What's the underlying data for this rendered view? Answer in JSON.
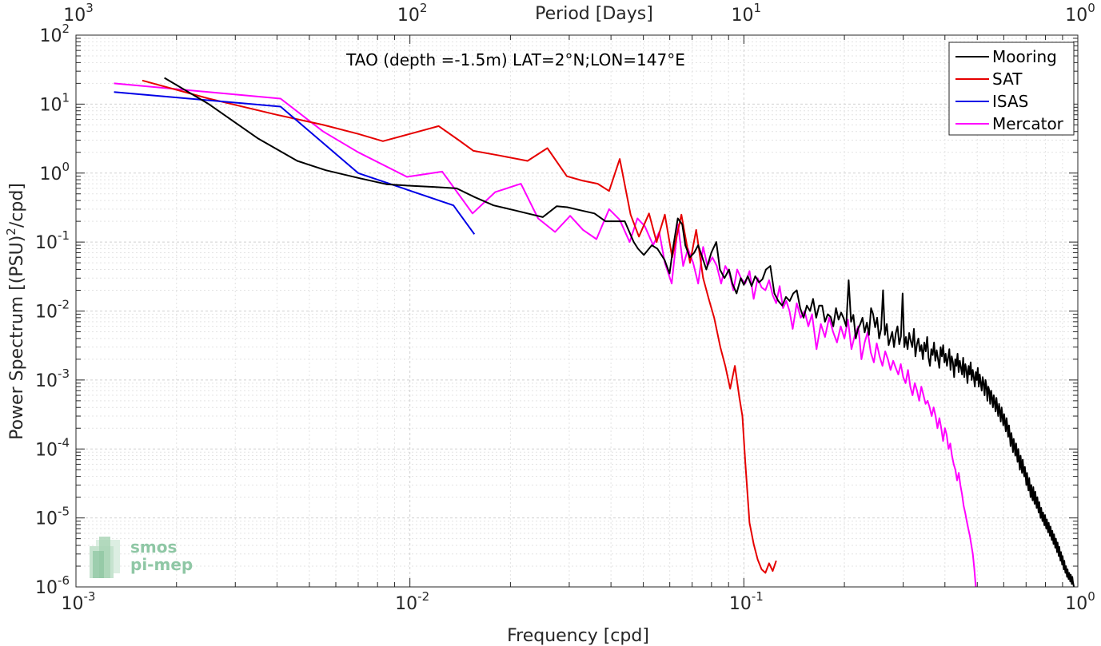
{
  "chart_data": {
    "type": "line",
    "title": "TAO (depth =-1.5m) LAT=2°N;LON=147°E",
    "xlabel": "Frequency [cpd]",
    "ylabel": "Power Spectrum [(PSU)",
    "ylabel_sup": "2",
    "ylabel_tail": "/cpd]",
    "x2label": "Period [Days]",
    "x_scale": "log",
    "y_scale": "log",
    "xlim": [
      0.001,
      1
    ],
    "ylim": [
      1e-06,
      100
    ],
    "grid": true,
    "legend_position": "top-right",
    "x_ticks": [
      {
        "value": 0.001,
        "base": "10",
        "exp": "-3"
      },
      {
        "value": 0.01,
        "base": "10",
        "exp": "-2"
      },
      {
        "value": 0.1,
        "base": "10",
        "exp": "-1"
      },
      {
        "value": 1,
        "base": "10",
        "exp": "0"
      }
    ],
    "x2_ticks": [
      {
        "value": 0.001,
        "base": "10",
        "exp": "3"
      },
      {
        "value": 0.01,
        "base": "10",
        "exp": "2"
      },
      {
        "value": 0.1,
        "base": "10",
        "exp": "1"
      },
      {
        "value": 1,
        "base": "10",
        "exp": "0"
      }
    ],
    "y_ticks": [
      {
        "value": 100,
        "base": "10",
        "exp": "2"
      },
      {
        "value": 10,
        "base": "10",
        "exp": "1"
      },
      {
        "value": 1,
        "base": "10",
        "exp": "0"
      },
      {
        "value": 0.1,
        "base": "10",
        "exp": "-1"
      },
      {
        "value": 0.01,
        "base": "10",
        "exp": "-2"
      },
      {
        "value": 0.001,
        "base": "10",
        "exp": "-3"
      },
      {
        "value": 0.0001,
        "base": "10",
        "exp": "-4"
      },
      {
        "value": 1e-05,
        "base": "10",
        "exp": "-5"
      },
      {
        "value": 1e-06,
        "base": "10",
        "exp": "-6"
      }
    ],
    "series": [
      {
        "name": "Mooring",
        "color": "#000000",
        "x": [
          0.00184,
          0.0025,
          0.0035,
          0.0046,
          0.0056,
          0.007,
          0.0085,
          0.0097,
          0.0118,
          0.0138,
          0.0156,
          0.0178,
          0.0205,
          0.0225,
          0.025,
          0.0275,
          0.0296,
          0.0323,
          0.0357,
          0.0385,
          0.0413,
          0.044,
          0.0468,
          0.0482,
          0.0502,
          0.053,
          0.0551,
          0.0579,
          0.0599,
          0.0613,
          0.0634,
          0.0654,
          0.0668,
          0.0689,
          0.071,
          0.073,
          0.0751,
          0.0772,
          0.0799,
          0.0827,
          0.0848,
          0.0875,
          0.0903,
          0.0924,
          0.0951,
          0.0979,
          0.1,
          0.1027,
          0.1055,
          0.1082,
          0.111,
          0.1137,
          0.1165,
          0.12,
          0.1234,
          0.1268,
          0.1303,
          0.1337,
          0.1372,
          0.1406,
          0.144,
          0.1475,
          0.1509,
          0.1544,
          0.1578,
          0.1612,
          0.1647,
          0.1681,
          0.1716,
          0.175,
          0.1784,
          0.1819,
          0.1853,
          0.1888,
          0.1922,
          0.1956,
          0.1991,
          0.2025,
          0.206,
          0.2094,
          0.2128,
          0.2163,
          0.2197,
          0.2232,
          0.2266,
          0.23,
          0.2335,
          0.2369,
          0.2404,
          0.2438,
          0.2472,
          0.2507,
          0.2541,
          0.2576,
          0.261,
          0.2644,
          0.2679,
          0.2713,
          0.2748,
          0.2782,
          0.2816,
          0.2851,
          0.2885,
          0.292,
          0.2954,
          0.2988,
          0.3023,
          0.3057,
          0.3092,
          0.3126,
          0.316,
          0.3195,
          0.3229,
          0.3264,
          0.3298,
          0.3332,
          0.3367,
          0.3401,
          0.3436,
          0.347,
          0.3504,
          0.3539,
          0.3573,
          0.3608,
          0.3642,
          0.3676,
          0.3711,
          0.3745,
          0.378,
          0.3814,
          0.3848,
          0.3883,
          0.3917,
          0.3952,
          0.3986,
          0.402,
          0.4055,
          0.4089,
          0.4124,
          0.4158,
          0.4192,
          0.4227,
          0.4261,
          0.4296,
          0.433,
          0.4364,
          0.4399,
          0.4433,
          0.4468,
          0.4502,
          0.4536,
          0.4571,
          0.4605,
          0.464,
          0.4674,
          0.4708,
          0.4743,
          0.4777,
          0.4812,
          0.4846,
          0.488,
          0.4915,
          0.4949,
          0.4984,
          0.5018,
          0.5052,
          0.5087,
          0.5121,
          0.5156,
          0.519,
          0.5224,
          0.5259,
          0.5293,
          0.5328,
          0.5362,
          0.5396,
          0.5431,
          0.5465,
          0.55,
          0.5534,
          0.5568,
          0.5603,
          0.5637,
          0.5672,
          0.5706,
          0.574,
          0.5775,
          0.5809,
          0.5844,
          0.5878,
          0.5912,
          0.5947,
          0.5981,
          0.6016,
          0.605,
          0.6084,
          0.6119,
          0.6153,
          0.6188,
          0.6222,
          0.6256,
          0.6291,
          0.6325,
          0.636,
          0.6394,
          0.6428,
          0.6463,
          0.6497,
          0.6532,
          0.6566,
          0.66,
          0.6635,
          0.6669,
          0.6704,
          0.6738,
          0.6772,
          0.6807,
          0.6841,
          0.6876,
          0.691,
          0.6944,
          0.6979,
          0.7013,
          0.7048,
          0.7082,
          0.7116,
          0.7151,
          0.7185,
          0.722,
          0.7254,
          0.7288,
          0.7323,
          0.7357,
          0.7392,
          0.7426,
          0.746,
          0.7495,
          0.7529,
          0.7564,
          0.7598,
          0.7632,
          0.7667,
          0.7701,
          0.7736,
          0.777,
          0.7804,
          0.7839,
          0.7873,
          0.7908,
          0.7942,
          0.7976,
          0.8011,
          0.8045,
          0.808,
          0.8114,
          0.8148,
          0.8183,
          0.8217,
          0.8252,
          0.8286,
          0.832,
          0.8355,
          0.8389,
          0.8424,
          0.8458,
          0.8492,
          0.8527,
          0.8561,
          0.8596,
          0.863,
          0.8664,
          0.8699,
          0.8733,
          0.8768,
          0.8802,
          0.8836,
          0.8871,
          0.8905,
          0.894,
          0.8974,
          0.9008,
          0.9043,
          0.9077,
          0.9112,
          0.9146,
          0.918,
          0.9215,
          0.9249,
          0.9284,
          0.9318,
          0.9352,
          0.9387,
          0.9421,
          0.9456,
          0.949,
          0.9524,
          0.9559,
          0.9593,
          0.9628,
          0.9662,
          0.9696,
          0.9731
        ],
        "y": [
          24,
          10,
          3.2,
          1.5,
          1.1,
          0.85,
          0.69,
          0.66,
          0.63,
          0.6,
          0.45,
          0.34,
          0.29,
          0.26,
          0.23,
          0.33,
          0.32,
          0.29,
          0.26,
          0.2,
          0.2,
          0.2,
          0.1,
          0.08,
          0.065,
          0.09,
          0.08,
          0.055,
          0.035,
          0.08,
          0.22,
          0.18,
          0.09,
          0.06,
          0.07,
          0.09,
          0.06,
          0.04,
          0.07,
          0.1,
          0.04,
          0.03,
          0.04,
          0.025,
          0.018,
          0.03,
          0.024,
          0.032,
          0.023,
          0.032,
          0.026,
          0.029,
          0.04,
          0.045,
          0.018,
          0.014,
          0.012,
          0.016,
          0.014,
          0.018,
          0.02,
          0.011,
          0.008,
          0.012,
          0.01,
          0.015,
          0.008,
          0.012,
          0.012,
          0.007,
          0.009,
          0.0082,
          0.006,
          0.011,
          0.0075,
          0.0095,
          0.0078,
          0.006,
          0.028,
          0.007,
          0.0088,
          0.004,
          0.0055,
          0.0065,
          0.008,
          0.0049,
          0.0068,
          0.0045,
          0.011,
          0.009,
          0.0058,
          0.008,
          0.004,
          0.0055,
          0.02,
          0.0045,
          0.0065,
          0.0032,
          0.004,
          0.005,
          0.003,
          0.0048,
          0.006,
          0.0033,
          0.0043,
          0.018,
          0.003,
          0.0042,
          0.0028,
          0.0048,
          0.0037,
          0.003,
          0.0055,
          0.0022,
          0.0033,
          0.004,
          0.0026,
          0.0032,
          0.002,
          0.0035,
          0.0026,
          0.0042,
          0.0021,
          0.0016,
          0.0028,
          0.0023,
          0.0035,
          0.0019,
          0.0027,
          0.002,
          0.0015,
          0.003,
          0.0022,
          0.0032,
          0.0018,
          0.0024,
          0.0016,
          0.0021,
          0.0028,
          0.0014,
          0.0022,
          0.0018,
          0.0011,
          0.002,
          0.0016,
          0.0024,
          0.0013,
          0.0019,
          0.0015,
          0.0012,
          0.0021,
          0.0011,
          0.0017,
          0.0014,
          0.0009,
          0.0016,
          0.0012,
          0.0018,
          0.001,
          0.0014,
          0.0011,
          0.0008,
          0.0013,
          0.001,
          0.0015,
          0.0008,
          0.0012,
          0.0009,
          0.0007,
          0.0011,
          0.0009,
          0.0006,
          0.001,
          0.0008,
          0.0005,
          0.0008,
          0.0007,
          0.00045,
          0.0007,
          0.00055,
          0.0004,
          0.0006,
          0.00048,
          0.00035,
          0.00055,
          0.0004,
          0.0003,
          0.00045,
          0.00035,
          0.00025,
          0.0004,
          0.0003,
          0.00022,
          0.00032,
          0.00025,
          0.00018,
          0.00028,
          0.00021,
          0.00015,
          0.00022,
          0.00016,
          0.00011,
          0.00017,
          0.00013,
          9e-05,
          0.00014,
          0.00011,
          8e-05,
          0.00012,
          9e-05,
          6.5e-05,
          0.0001,
          7e-05,
          5e-05,
          8e-05,
          6e-05,
          4.5e-05,
          7e-05,
          5e-05,
          4e-05,
          5.5e-05,
          4e-05,
          3e-05,
          4.5e-05,
          3.2e-05,
          2.5e-05,
          3.8e-05,
          2.8e-05,
          2e-05,
          3e-05,
          2.2e-05,
          1.8e-05,
          2.8e-05,
          2e-05,
          1.6e-05,
          2.4e-05,
          1.8e-05,
          1.4e-05,
          2e-05,
          1.5e-05,
          1.2e-05,
          1.7e-05,
          1.3e-05,
          1e-05,
          1.4e-05,
          1.1e-05,
          9e-06,
          1.2e-05,
          9.5e-06,
          7.8e-06,
          1.1e-05,
          8.5e-06,
          7e-06,
          9.5e-06,
          7.5e-06,
          6.2e-06,
          8.5e-06,
          6.8e-06,
          5.5e-06,
          7.5e-06,
          6e-06,
          4.8e-06,
          6.5e-06,
          5.2e-06,
          4.2e-06,
          5.8e-06,
          4.6e-06,
          3.7e-06,
          5e-06,
          4e-06,
          3.2e-06,
          4.4e-06,
          3.5e-06,
          2.8e-06,
          3.8e-06,
          3e-06,
          2.4e-06,
          3.2e-06,
          2.6e-06,
          2.1e-06,
          2.8e-06,
          2.2e-06,
          1.8e-06,
          2.4e-06,
          1.9e-06,
          1.6e-06,
          2e-06,
          1.7e-06,
          1.4e-06,
          1.8e-06,
          1.5e-06,
          1.3e-06,
          1.6e-06,
          1.4e-06,
          1.2e-06,
          1.5e-06,
          1.3e-06,
          1.1e-06,
          1.4e-06,
          1.2e-06,
          1.1e-06,
          1e-06
        ]
      },
      {
        "name": "SAT",
        "color": "#e60000",
        "x": [
          0.00158,
          0.0025,
          0.004,
          0.0055,
          0.007,
          0.0083,
          0.01,
          0.0122,
          0.014,
          0.0155,
          0.0185,
          0.0225,
          0.0258,
          0.0295,
          0.0328,
          0.0365,
          0.0395,
          0.0425,
          0.0458,
          0.0485,
          0.052,
          0.0548,
          0.058,
          0.061,
          0.065,
          0.069,
          0.072,
          0.0755,
          0.0785,
          0.0815,
          0.085,
          0.088,
          0.091,
          0.094,
          0.097,
          0.099,
          0.101,
          0.104,
          0.107,
          0.11,
          0.113,
          0.116,
          0.119,
          0.122,
          0.125
        ],
        "y": [
          22,
          12,
          7,
          5,
          3.7,
          2.9,
          3.7,
          4.8,
          3.0,
          2.1,
          1.8,
          1.5,
          2.3,
          0.9,
          0.78,
          0.7,
          0.55,
          1.6,
          0.25,
          0.12,
          0.26,
          0.1,
          0.25,
          0.06,
          0.25,
          0.05,
          0.15,
          0.03,
          0.015,
          0.008,
          0.003,
          0.0016,
          0.00075,
          0.0016,
          0.00055,
          0.0003,
          6.5e-05,
          8.5e-06,
          4.2e-06,
          2.5e-06,
          1.8e-06,
          1.6e-06,
          2.2e-06,
          1.7e-06,
          2.4e-06
        ]
      },
      {
        "name": "ISAS",
        "color": "#0000e6",
        "x": [
          0.0013,
          0.0041,
          0.007,
          0.0135,
          0.0156
        ],
        "y": [
          15,
          9.2,
          1.0,
          0.34,
          0.13
        ]
      },
      {
        "name": "Mercator",
        "color": "#ff00ff",
        "x": [
          0.0013,
          0.0041,
          0.0055,
          0.007,
          0.0098,
          0.0125,
          0.0154,
          0.018,
          0.0215,
          0.0242,
          0.0272,
          0.0302,
          0.033,
          0.0362,
          0.0395,
          0.0425,
          0.0455,
          0.048,
          0.0505,
          0.0535,
          0.0558,
          0.058,
          0.0608,
          0.0635,
          0.0658,
          0.068,
          0.0705,
          0.073,
          0.0755,
          0.0778,
          0.0805,
          0.083,
          0.0855,
          0.088,
          0.0905,
          0.093,
          0.0955,
          0.098,
          0.101,
          0.104,
          0.107,
          0.11,
          0.113,
          0.116,
          0.119,
          0.122,
          0.125,
          0.128,
          0.131,
          0.134,
          0.137,
          0.14,
          0.144,
          0.148,
          0.152,
          0.156,
          0.16,
          0.165,
          0.17,
          0.175,
          0.18,
          0.185,
          0.19,
          0.195,
          0.2,
          0.205,
          0.21,
          0.215,
          0.22,
          0.225,
          0.23,
          0.235,
          0.24,
          0.245,
          0.25,
          0.255,
          0.26,
          0.265,
          0.27,
          0.275,
          0.28,
          0.285,
          0.29,
          0.295,
          0.3,
          0.305,
          0.31,
          0.315,
          0.32,
          0.325,
          0.33,
          0.335,
          0.34,
          0.345,
          0.35,
          0.355,
          0.36,
          0.365,
          0.37,
          0.375,
          0.38,
          0.385,
          0.39,
          0.395,
          0.4,
          0.405,
          0.41,
          0.415,
          0.42,
          0.425,
          0.43,
          0.435,
          0.44,
          0.445,
          0.45,
          0.455,
          0.46,
          0.465,
          0.47,
          0.475,
          0.48,
          0.485,
          0.49,
          0.495
        ],
        "y": [
          20,
          12,
          4,
          2,
          0.88,
          1.05,
          0.26,
          0.53,
          0.7,
          0.22,
          0.14,
          0.24,
          0.15,
          0.11,
          0.3,
          0.21,
          0.1,
          0.22,
          0.17,
          0.09,
          0.14,
          0.05,
          0.025,
          0.18,
          0.045,
          0.08,
          0.05,
          0.025,
          0.085,
          0.045,
          0.06,
          0.045,
          0.025,
          0.045,
          0.035,
          0.02,
          0.04,
          0.03,
          0.025,
          0.038,
          0.015,
          0.03,
          0.022,
          0.02,
          0.028,
          0.017,
          0.013,
          0.023,
          0.011,
          0.014,
          0.01,
          0.0055,
          0.013,
          0.008,
          0.01,
          0.006,
          0.009,
          0.0028,
          0.0065,
          0.0042,
          0.008,
          0.005,
          0.0035,
          0.006,
          0.004,
          0.0075,
          0.0028,
          0.0045,
          0.006,
          0.002,
          0.0035,
          0.005,
          0.0025,
          0.0018,
          0.0034,
          0.0022,
          0.0016,
          0.0026,
          0.002,
          0.0014,
          0.0019,
          0.0015,
          0.0012,
          0.0017,
          0.0011,
          0.0009,
          0.0014,
          0.0008,
          0.0006,
          0.0009,
          0.0007,
          0.0005,
          0.0008,
          0.0006,
          0.00045,
          0.0005,
          0.0004,
          0.0003,
          0.0004,
          0.0003,
          0.0002,
          0.00028,
          0.0002,
          0.00013,
          0.0002,
          0.00016,
          0.0001,
          0.00012,
          8e-05,
          6e-05,
          5e-05,
          3.5e-05,
          4.5e-05,
          3e-05,
          2.2e-05,
          1.5e-05,
          1.2e-05,
          9e-06,
          7e-06,
          5.5e-06,
          4e-06,
          3e-06,
          1.8e-06,
          1e-06
        ]
      }
    ]
  },
  "logo": {
    "line1": "smos",
    "line2": "pi-mep"
  }
}
